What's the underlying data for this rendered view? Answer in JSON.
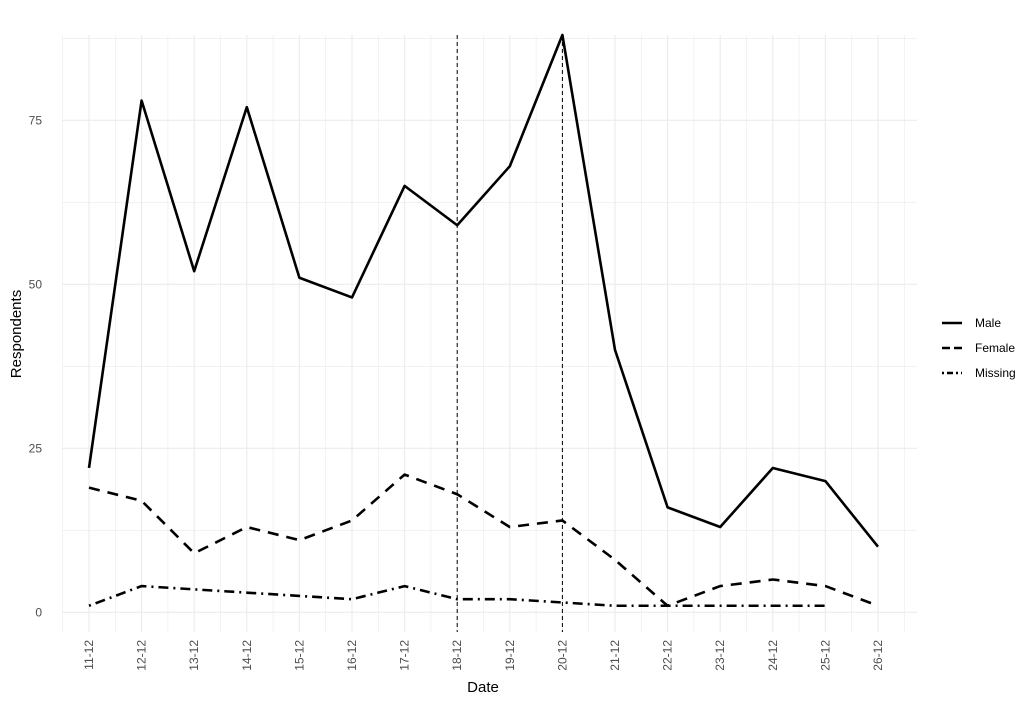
{
  "chart_data": {
    "type": "line",
    "xlabel": "Date",
    "ylabel": "Respondents",
    "categories": [
      "11-12",
      "12-12",
      "13-12",
      "14-12",
      "15-12",
      "16-12",
      "17-12",
      "18-12",
      "19-12",
      "20-12",
      "21-12",
      "22-12",
      "23-12",
      "24-12",
      "25-12",
      "26-12"
    ],
    "ylim": [
      -3,
      88
    ],
    "y_ticks": [
      0,
      25,
      50,
      75
    ],
    "grid": true,
    "legend_position": "right",
    "vertical_reference_lines": [
      "18-12",
      "20-12"
    ],
    "series": [
      {
        "name": "Male",
        "line_style": "solid",
        "values": [
          22,
          78,
          52,
          77,
          51,
          48,
          65,
          59,
          68,
          88,
          40,
          16,
          13,
          22,
          20,
          10
        ]
      },
      {
        "name": "Female",
        "line_style": "dashed",
        "values": [
          19,
          17,
          9,
          13,
          11,
          14,
          21,
          18,
          13,
          14,
          8,
          1,
          4,
          5,
          4,
          1
        ]
      },
      {
        "name": "Missing",
        "line_style": "dotdash",
        "values": [
          1,
          4,
          3.5,
          3,
          2.5,
          2,
          4,
          2,
          2,
          1.5,
          1,
          1,
          1,
          1,
          1,
          null
        ]
      }
    ],
    "colors": {
      "line": "#000000",
      "grid": "#ebebeb",
      "tick": "#4d4d4d"
    }
  }
}
